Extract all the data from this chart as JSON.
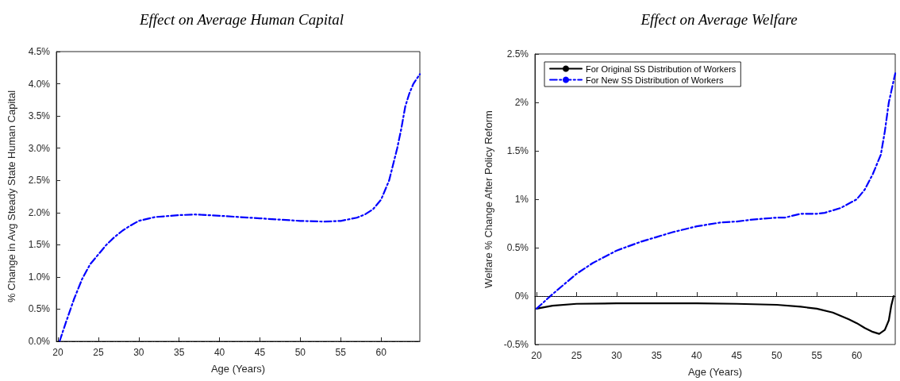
{
  "chart_data": [
    {
      "type": "line",
      "title": "Effect on Average Human Capital",
      "xlabel": "Age (Years)",
      "ylabel": "% Change in Avg Steady State Human Capital",
      "xlim": [
        19.8,
        64.8
      ],
      "xticks": [
        20,
        25,
        30,
        35,
        40,
        45,
        50,
        55,
        60
      ],
      "ylim": [
        0,
        4.5
      ],
      "yticks": [
        {
          "value": 0,
          "label": "0.0%"
        },
        {
          "value": 0.5,
          "label": "0.5%"
        },
        {
          "value": 1,
          "label": "1.0%"
        },
        {
          "value": 1.5,
          "label": "1.5%"
        },
        {
          "value": 2,
          "label": "2.0%"
        },
        {
          "value": 2.5,
          "label": "2.5%"
        },
        {
          "value": 3,
          "label": "3.0%"
        },
        {
          "value": 3.5,
          "label": "3.5%"
        },
        {
          "value": 4,
          "label": "4.0%"
        },
        {
          "value": 4.5,
          "label": "4.5%"
        }
      ],
      "grid": false,
      "legend": false,
      "marker": "none",
      "ref_lines": [
        {
          "axis": "y",
          "value": 0,
          "color": "#000000",
          "line_style": "dashed"
        }
      ],
      "series": [
        {
          "color": "#0000ff",
          "line_style": "dashed",
          "x": [
            20.2,
            21,
            22,
            23,
            24,
            25,
            26,
            27,
            28,
            29,
            30,
            32,
            35,
            37,
            40,
            45,
            50,
            53,
            55,
            57,
            58,
            59,
            60,
            61,
            62,
            62.5,
            63,
            63.5,
            64,
            64.8
          ],
          "values": [
            0,
            0.3,
            0.66,
            0.97,
            1.2,
            1.35,
            1.5,
            1.62,
            1.72,
            1.8,
            1.87,
            1.93,
            1.96,
            1.97,
            1.95,
            1.91,
            1.87,
            1.86,
            1.87,
            1.92,
            1.97,
            2.05,
            2.2,
            2.5,
            3.0,
            3.3,
            3.65,
            3.85,
            4.0,
            4.15
          ]
        }
      ]
    },
    {
      "type": "line",
      "title": "Effect on Average Welfare",
      "xlabel": "Age (Years)",
      "ylabel": "Welfare % Change After Policy Reform",
      "xlim": [
        19.8,
        64.8
      ],
      "xticks": [
        20,
        25,
        30,
        35,
        40,
        45,
        50,
        55,
        60
      ],
      "ylim": [
        -0.5,
        2.5
      ],
      "yticks": [
        {
          "value": -0.5,
          "label": "-0.5%"
        },
        {
          "value": 0,
          "label": "0%"
        },
        {
          "value": 0.5,
          "label": "0.5%"
        },
        {
          "value": 1,
          "label": "1%"
        },
        {
          "value": 1.5,
          "label": "1.5%"
        },
        {
          "value": 2,
          "label": "2%"
        },
        {
          "value": 2.5,
          "label": "2.5%"
        }
      ],
      "grid": false,
      "legend": "top left",
      "marker": "none",
      "ref_lines": [
        {
          "axis": "y",
          "value": 0,
          "color": "#000000",
          "line_style": "dotted"
        }
      ],
      "series": [
        {
          "name": "For Original SS Distribution of Workers",
          "color": "#000000",
          "line_style": "solid",
          "x": [
            20,
            22,
            25,
            30,
            40,
            45,
            50,
            53,
            55,
            57,
            59,
            60,
            61,
            62,
            62.8,
            63.5,
            64,
            64.3,
            64.6
          ],
          "values": [
            -0.13,
            -0.1,
            -0.08,
            -0.075,
            -0.075,
            -0.08,
            -0.09,
            -0.11,
            -0.13,
            -0.17,
            -0.24,
            -0.28,
            -0.33,
            -0.37,
            -0.39,
            -0.35,
            -0.25,
            -0.1,
            0.0
          ]
        },
        {
          "name": "For New SS Distribution of Workers",
          "color": "#0000ff",
          "line_style": "dashed",
          "x": [
            20,
            22,
            25,
            27,
            30,
            33,
            35,
            37,
            40,
            43,
            45,
            47,
            50,
            51,
            53,
            55,
            56,
            58,
            60,
            61,
            62,
            63,
            63.5,
            64,
            64.8
          ],
          "values": [
            -0.13,
            0.02,
            0.23,
            0.34,
            0.47,
            0.56,
            0.61,
            0.66,
            0.72,
            0.76,
            0.77,
            0.79,
            0.81,
            0.81,
            0.85,
            0.85,
            0.86,
            0.91,
            1.0,
            1.1,
            1.26,
            1.46,
            1.7,
            2.0,
            2.3
          ]
        }
      ]
    }
  ]
}
